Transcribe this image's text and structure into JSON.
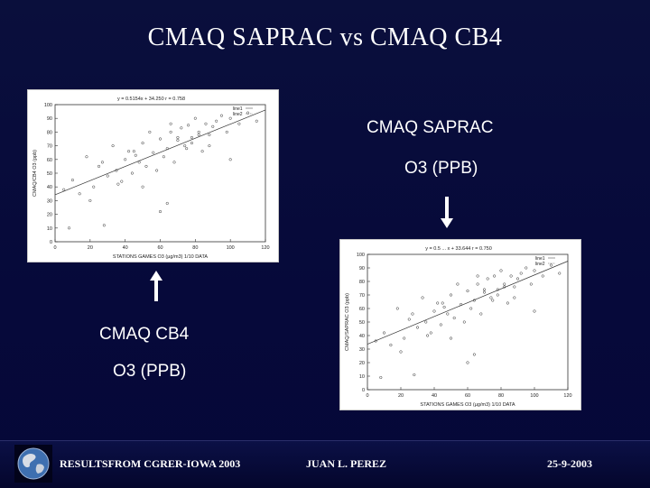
{
  "slide": {
    "title": "CMAQ SAPRAC vs CMAQ CB4",
    "saprac_label_1": "CMAQ SAPRAC",
    "saprac_label_2": "O3 (PPB)",
    "cb4_label_1": "CMAQ CB4",
    "cb4_label_2": "O3 (PPB)"
  },
  "footer": {
    "left": "RESULTSFROM CGRER-IOWA 2003",
    "center": "JUAN L. PEREZ",
    "right": "25-9-2003"
  },
  "icons": {
    "logo": "globe-icon",
    "up": "arrow-up-icon",
    "down": "arrow-down-icon"
  },
  "colors": {
    "background": "#06093a",
    "text": "#ffffff"
  },
  "chart_data": [
    {
      "type": "scatter",
      "title": "y = 0.5154x + 34.250    r = 0.758",
      "xlabel": "STATIONS GAMES O3 (µg/m3) 1/10 DATA",
      "ylabel": "CMAQ/CB4 O3 (ppb)",
      "xlim": [
        0,
        120
      ],
      "ylim": [
        0,
        100
      ],
      "x_ticks": [
        "0",
        "20",
        "40",
        "60",
        "80",
        "100",
        "120"
      ],
      "y_ticks": [
        "0",
        "10",
        "20",
        "30",
        "40",
        "50",
        "60",
        "70",
        "80",
        "90",
        "100"
      ],
      "legend": [
        "line1",
        "line2"
      ],
      "fit": [
        [
          0,
          34.25
        ],
        [
          120,
          96.1
        ]
      ],
      "x": [
        5,
        10,
        14,
        18,
        22,
        25,
        27,
        30,
        33,
        35,
        38,
        40,
        42,
        44,
        46,
        48,
        50,
        52,
        54,
        56,
        58,
        60,
        62,
        64,
        66,
        68,
        70,
        72,
        74,
        76,
        78,
        80,
        82,
        84,
        86,
        88,
        90,
        92,
        95,
        98,
        100,
        105,
        110,
        115,
        8,
        20,
        36,
        50,
        64,
        78,
        28,
        60,
        45,
        70,
        88,
        100,
        66,
        75,
        82
      ],
      "y": [
        38,
        45,
        35,
        62,
        40,
        55,
        58,
        48,
        70,
        52,
        44,
        60,
        66,
        50,
        63,
        58,
        72,
        55,
        80,
        65,
        52,
        75,
        62,
        68,
        80,
        58,
        76,
        83,
        70,
        85,
        72,
        90,
        80,
        66,
        86,
        78,
        84,
        88,
        92,
        80,
        90,
        86,
        94,
        88,
        10,
        30,
        42,
        40,
        28,
        76,
        12,
        22,
        66,
        74,
        70,
        60,
        86,
        68,
        78
      ]
    },
    {
      "type": "scatter",
      "title": "y = 0.5 ... x + 33.644    r = 0.750",
      "xlabel": "STATIONS GAMES O3 (µg/m3) 1/10 DATA",
      "ylabel": "CMAQ/SAPRAC O3 (ppb)",
      "xlim": [
        0,
        120
      ],
      "ylim": [
        0,
        100
      ],
      "x_ticks": [
        "0",
        "20",
        "40",
        "60",
        "80",
        "100",
        "120"
      ],
      "y_ticks": [
        "0",
        "10",
        "20",
        "30",
        "40",
        "50",
        "60",
        "70",
        "80",
        "90",
        "100"
      ],
      "legend": [
        "line1",
        "line2"
      ],
      "fit": [
        [
          0,
          33.6
        ],
        [
          120,
          95
        ]
      ],
      "x": [
        5,
        10,
        14,
        18,
        22,
        25,
        27,
        30,
        33,
        35,
        38,
        40,
        42,
        44,
        46,
        48,
        50,
        52,
        54,
        56,
        58,
        60,
        62,
        64,
        66,
        68,
        70,
        72,
        74,
        76,
        78,
        80,
        82,
        84,
        86,
        88,
        90,
        92,
        95,
        98,
        100,
        105,
        110,
        115,
        8,
        20,
        36,
        50,
        64,
        78,
        28,
        60,
        45,
        70,
        88,
        100,
        66,
        75,
        82
      ],
      "y": [
        36,
        42,
        33,
        60,
        38,
        52,
        56,
        46,
        68,
        50,
        42,
        58,
        64,
        48,
        61,
        56,
        70,
        53,
        78,
        63,
        50,
        73,
        60,
        66,
        78,
        56,
        74,
        82,
        68,
        84,
        70,
        88,
        78,
        64,
        84,
        76,
        82,
        86,
        90,
        78,
        88,
        84,
        92,
        86,
        9,
        28,
        40,
        38,
        26,
        74,
        11,
        20,
        64,
        72,
        68,
        58,
        84,
        66,
        76
      ]
    }
  ]
}
